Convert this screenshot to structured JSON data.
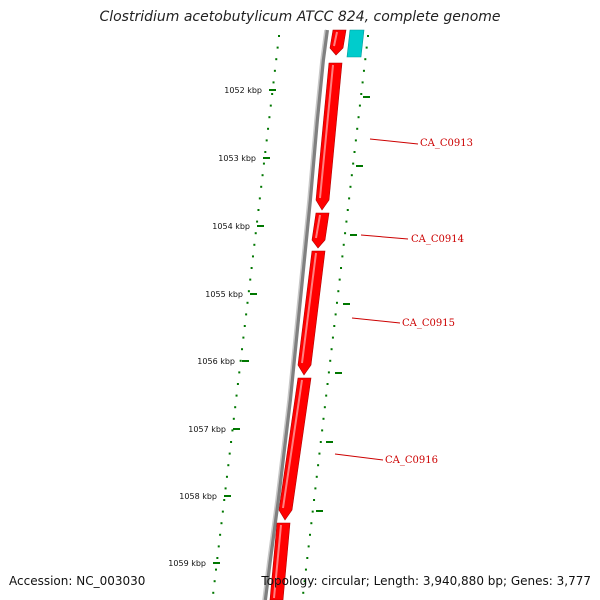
{
  "title": "Clostridium acetobutylicum ATCC 824, complete genome",
  "accession_text": "Accession: NC_003030",
  "summary_text": "Topology: circular; Length: 3,940,880 bp; Genes: 3,777",
  "ruler": {
    "ticks": [
      "1052 kbp",
      "1053 kbp",
      "1054 kbp",
      "1055 kbp",
      "1056 kbp",
      "1057 kbp",
      "1058 kbp",
      "1059 kbp"
    ]
  },
  "genes": [
    {
      "label": "CA_C0913"
    },
    {
      "label": "CA_C0914"
    },
    {
      "label": "CA_C0915"
    },
    {
      "label": "CA_C0916"
    }
  ],
  "colors": {
    "forward_strand": "#ff0000",
    "reverse_strand": "#00cccc",
    "backbone": "#808080",
    "ticks": "#007700",
    "label_line": "#cc0000"
  }
}
